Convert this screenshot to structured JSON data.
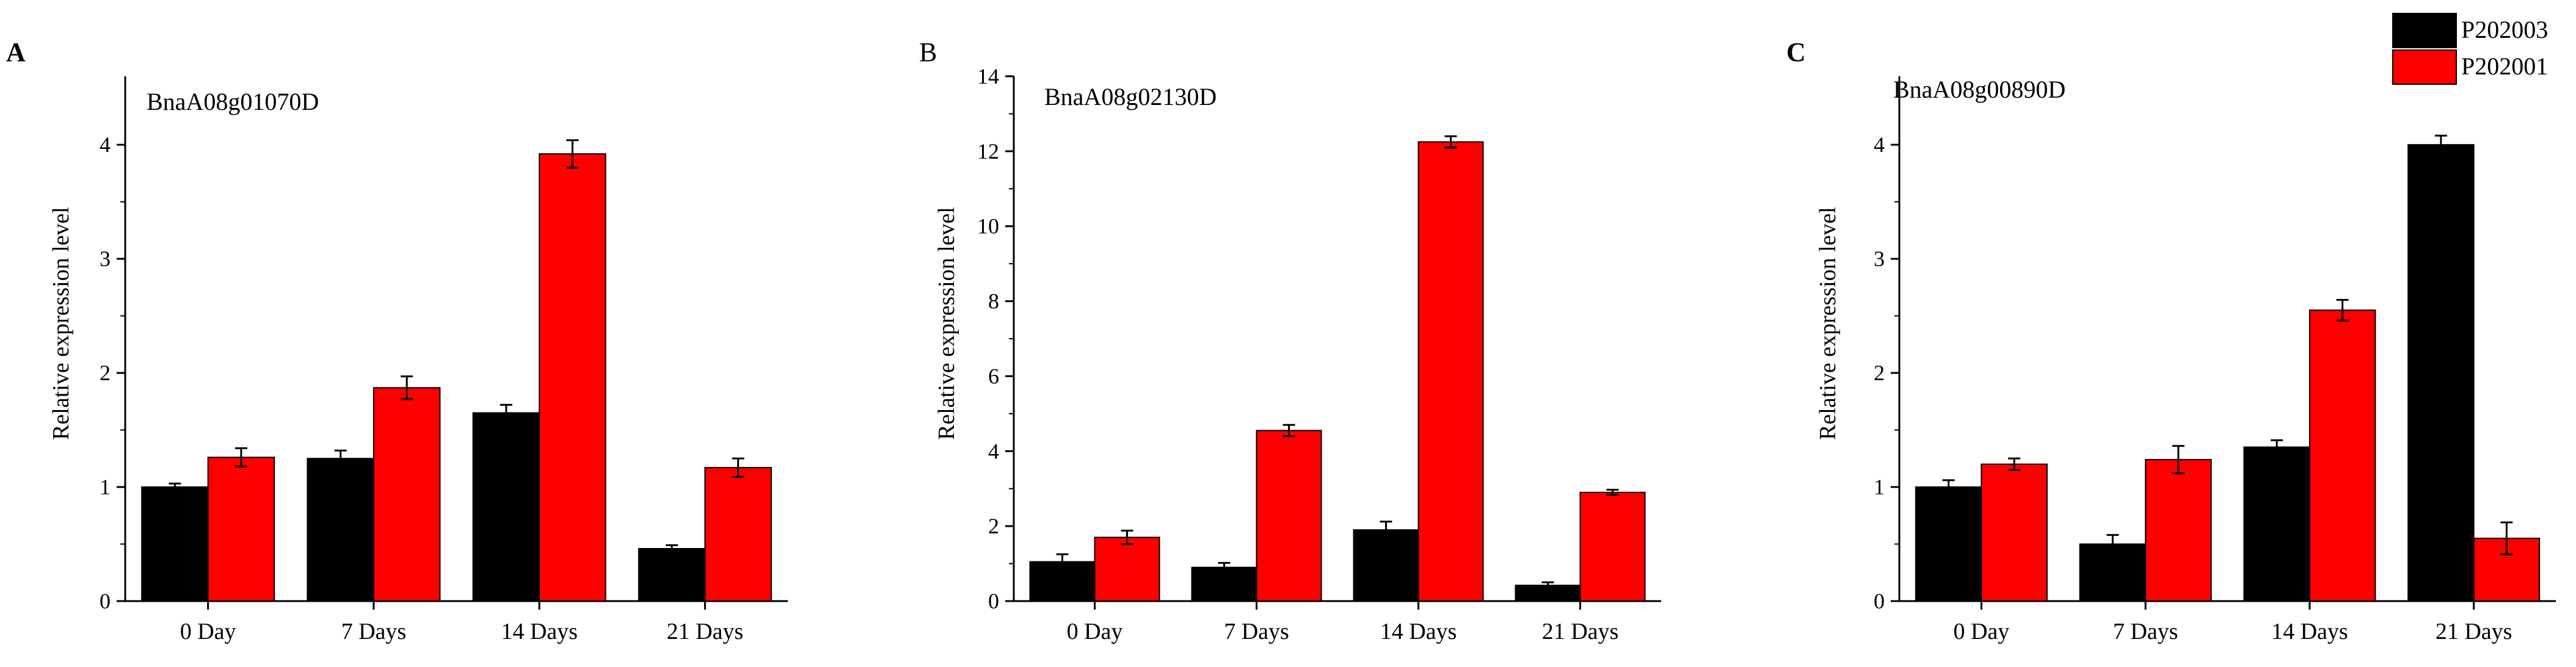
{
  "legend": {
    "entries": [
      {
        "name": "P202003",
        "color": "#000000"
      },
      {
        "name": "P202001",
        "color": "#ff0000"
      }
    ],
    "placement": "top-right"
  },
  "chart_data": [
    {
      "type": "bar",
      "panel": "A",
      "title": "BnaA08g01070D",
      "xlabel": "",
      "ylabel": "Relative expression level",
      "categories": [
        "0 Day",
        "7 Days",
        "14 Days",
        "21 Days"
      ],
      "ylim": [
        0,
        4.6
      ],
      "yticks": [
        0,
        1,
        2,
        3,
        4
      ],
      "series": [
        {
          "name": "P202003",
          "color": "#000000",
          "values": [
            1.0,
            1.25,
            1.65,
            0.46
          ],
          "errors": [
            0.03,
            0.07,
            0.07,
            0.03
          ]
        },
        {
          "name": "P202001",
          "color": "#ff0000",
          "values": [
            1.26,
            1.87,
            3.92,
            1.17
          ],
          "errors": [
            0.08,
            0.1,
            0.12,
            0.08
          ]
        }
      ]
    },
    {
      "type": "bar",
      "panel": "B",
      "title": "BnaA08g02130D",
      "xlabel": "",
      "ylabel": "Relative expression level",
      "categories": [
        "0 Day",
        "7 Days",
        "14 Days",
        "21 Days"
      ],
      "ylim": [
        0,
        14
      ],
      "yticks": [
        0,
        2,
        4,
        6,
        8,
        10,
        12,
        14
      ],
      "series": [
        {
          "name": "P202003",
          "color": "#000000",
          "values": [
            1.05,
            0.9,
            1.9,
            0.42
          ],
          "errors": [
            0.2,
            0.12,
            0.22,
            0.08
          ]
        },
        {
          "name": "P202001",
          "color": "#ff0000",
          "values": [
            1.7,
            4.55,
            12.25,
            2.9
          ],
          "errors": [
            0.18,
            0.15,
            0.15,
            0.07
          ]
        }
      ]
    },
    {
      "type": "bar",
      "panel": "C",
      "title": "BnaA08g00890D",
      "xlabel": "",
      "ylabel": "Relative expression level",
      "categories": [
        "0 Day",
        "7 Days",
        "14 Days",
        "21 Days"
      ],
      "ylim": [
        0,
        4.6
      ],
      "yticks": [
        0,
        1,
        2,
        3,
        4
      ],
      "series": [
        {
          "name": "P202003",
          "color": "#000000",
          "values": [
            1.0,
            0.5,
            1.35,
            4.0
          ],
          "errors": [
            0.06,
            0.08,
            0.06,
            0.08
          ]
        },
        {
          "name": "P202001",
          "color": "#ff0000",
          "values": [
            1.2,
            1.24,
            2.55,
            0.55
          ],
          "errors": [
            0.05,
            0.12,
            0.09,
            0.14
          ]
        }
      ]
    }
  ]
}
